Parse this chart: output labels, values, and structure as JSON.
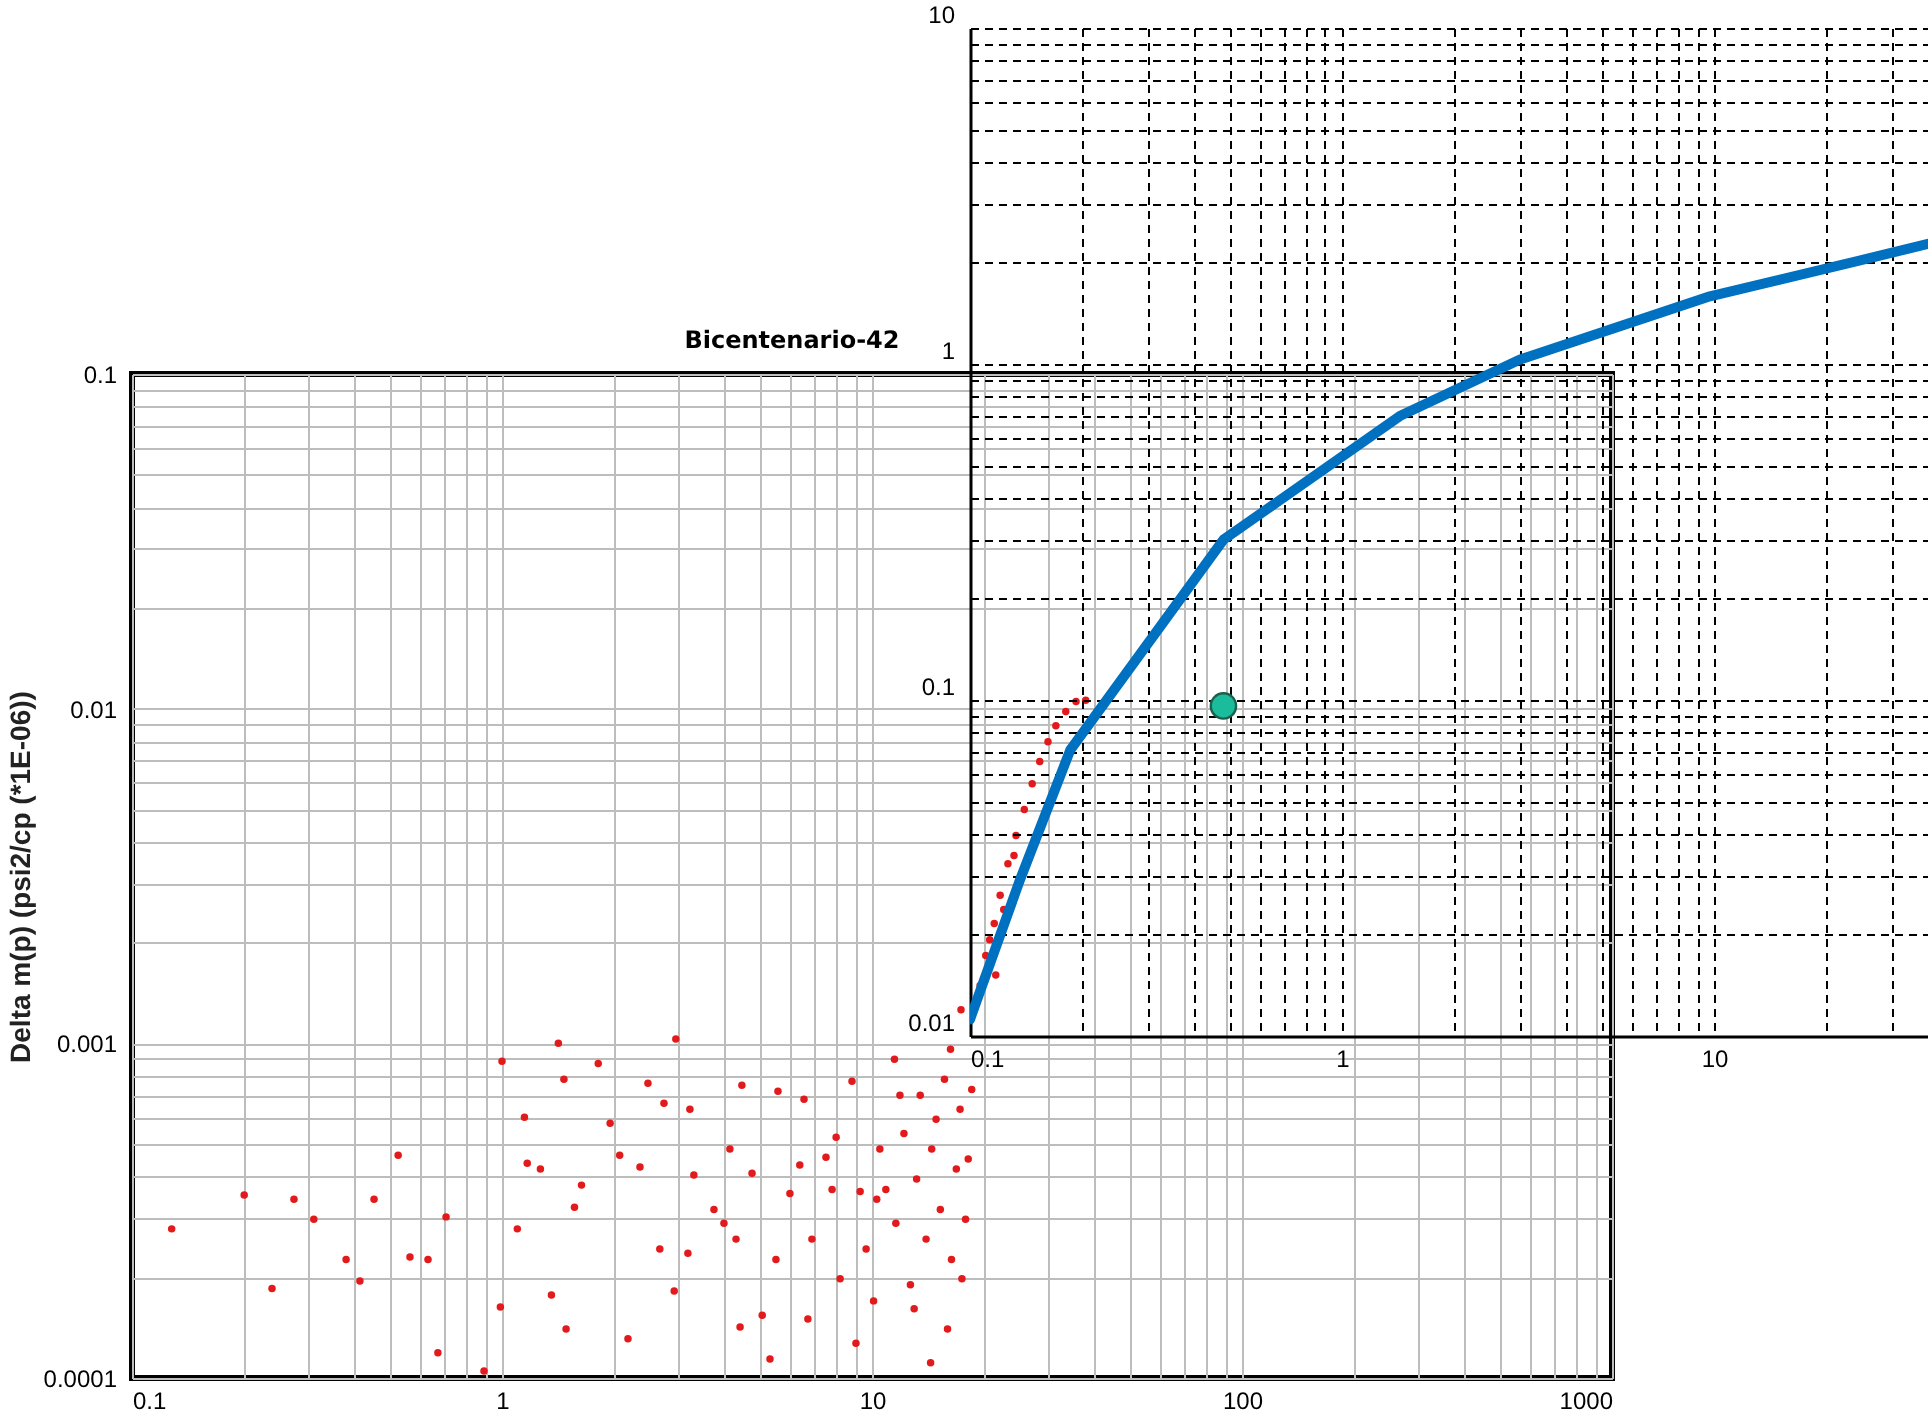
{
  "chart_data": [
    {
      "type": "scatter",
      "title": "Bicentenario-42",
      "ylabel": "Delta m(p) (psi2/cp (*1E-06))",
      "log": "xy",
      "xlim": [
        0.1,
        1000
      ],
      "ylim": [
        0.0001,
        0.1
      ],
      "xticks": [
        0.1,
        {
          "value": 0.2,
          "label": null
        },
        {
          "value": 0.3,
          "label": null
        },
        {
          "value": 0.4,
          "label": null
        },
        {
          "value": 0.5,
          "label": null
        },
        {
          "value": 0.6,
          "label": null
        },
        {
          "value": 0.7,
          "label": null
        },
        {
          "value": 0.8,
          "label": null
        },
        {
          "value": 0.9,
          "label": null
        },
        1,
        {
          "value": 2,
          "label": null
        },
        {
          "value": 3,
          "label": null
        },
        {
          "value": 4,
          "label": null
        },
        {
          "value": 5,
          "label": null
        },
        {
          "value": 6,
          "label": null
        },
        {
          "value": 7,
          "label": null
        },
        {
          "value": 8,
          "label": null
        },
        {
          "value": 9,
          "label": null
        },
        10,
        {
          "value": 20,
          "label": null
        },
        {
          "value": 30,
          "label": null
        },
        {
          "value": 40,
          "label": null
        },
        {
          "value": 50,
          "label": null
        },
        {
          "value": 60,
          "label": null
        },
        {
          "value": 70,
          "label": null
        },
        {
          "value": 80,
          "label": null
        },
        {
          "value": 90,
          "label": null
        },
        100,
        {
          "value": 200,
          "label": null
        },
        {
          "value": 300,
          "label": null
        },
        {
          "value": 400,
          "label": null
        },
        {
          "value": 500,
          "label": null
        },
        {
          "value": 600,
          "label": null
        },
        {
          "value": 700,
          "label": null
        },
        {
          "value": 800,
          "label": null
        },
        {
          "value": 900,
          "label": null
        },
        1000
      ],
      "yticks": [
        0.0001,
        {
          "value": 0.0002,
          "label": null
        },
        {
          "value": 0.0003,
          "label": null
        },
        {
          "value": 0.0004,
          "label": null
        },
        {
          "value": 0.0005,
          "label": null
        },
        {
          "value": 0.0006,
          "label": null
        },
        {
          "value": 0.0007,
          "label": null
        },
        {
          "value": 0.0008,
          "label": null
        },
        {
          "value": 0.0009,
          "label": null
        },
        0.001,
        {
          "value": 0.002,
          "label": null
        },
        {
          "value": 0.003,
          "label": null
        },
        {
          "value": 0.004,
          "label": null
        },
        {
          "value": 0.005,
          "label": null
        },
        {
          "value": 0.006,
          "label": null
        },
        {
          "value": 0.007,
          "label": null
        },
        {
          "value": 0.008,
          "label": null
        },
        {
          "value": 0.009,
          "label": null
        },
        0.01,
        {
          "value": 0.02,
          "label": null
        },
        {
          "value": 0.03,
          "label": null
        },
        {
          "value": 0.04,
          "label": null
        },
        {
          "value": 0.05,
          "label": null
        },
        {
          "value": 0.06,
          "label": null
        },
        {
          "value": 0.07,
          "label": null
        },
        {
          "value": 0.08,
          "label": null
        },
        {
          "value": 0.09,
          "label": null
        },
        0.1
      ],
      "grid": true,
      "marker": "circle",
      "series": [
        {
          "color": "#e31a1c",
          "x": [
            0.128,
            0.201,
            0.239,
            0.274,
            0.31,
            0.379,
            0.413,
            0.451,
            0.524,
            0.564,
            0.631,
            0.706,
            0.671,
            0.894,
            0.99,
            1.0,
            1.1,
            1.15,
            1.17,
            1.36,
            1.42,
            1.47,
            1.49,
            1.57,
            1.64,
            1.82,
            1.96,
            2.08,
            2.36,
            2.48,
            2.67,
            2.74,
            2.92,
            2.95,
            3.18,
            3.3,
            3.74,
            4.13,
            4.29,
            4.4,
            4.45,
            4.74,
            5.05,
            5.3,
            5.57,
            6.0,
            6.38,
            6.71,
            6.88,
            7.51,
            8.0,
            8.2,
            8.83,
            9.29,
            9.64,
            10.1,
            10.5,
            10.9,
            11.5,
            11.6,
            12.2,
            12.7,
            13.2,
            13.5,
            14.0,
            14.4,
            14.9,
            15.3,
            15.7,
            16.0,
            16.4,
            16.9,
            17.3,
            17.5,
            16.3,
            14.5,
            13.0,
            11.9,
            10.3,
            9.05,
            7.8,
            6.55,
            5.5,
            3.98,
            3.22,
            2.19,
            1.27,
            17.4,
            19.6,
            20.3,
            21.4,
            22.2,
            21.6,
            23.3,
            24.5,
            25.8,
            27.1,
            28.4,
            29.9,
            31.4,
            33.4,
            35.6,
            37.8,
            18.6,
            18.2,
            17.9,
            24.2,
            22.7,
            20.8
          ],
          "values": [
            0.000279,
            0.000352,
            0.000185,
            0.000342,
            0.000298,
            0.000226,
            0.000195,
            0.000342,
            0.000463,
            0.00023,
            0.000226,
            0.000303,
            0.000119,
            0.000105,
            0.000163,
            0.000884,
            0.000279,
            0.000601,
            0.000438,
            0.000177,
            0.001,
            0.000781,
            0.00014,
            0.000324,
            0.000377,
            0.000871,
            0.000577,
            0.000463,
            0.000427,
            0.00076,
            0.000243,
            0.000662,
            0.000182,
            0.00103,
            0.000236,
            0.000404,
            0.000319,
            0.000483,
            0.00026,
            0.000142,
            0.00075,
            0.000409,
            0.000154,
            0.000114,
            0.000719,
            0.000356,
            0.000433,
            0.00015,
            0.00026,
            0.000457,
            0.000524,
            0.000198,
            0.00077,
            0.000361,
            0.000243,
            0.00017,
            0.000483,
            0.000366,
            0.000896,
            0.00029,
            0.000538,
            0.00019,
            0.000393,
            0.0007,
            0.00026,
            0.000111,
            0.000593,
            0.000319,
            0.000781,
            0.00014,
            0.000226,
            0.000421,
            0.000635,
            0.000198,
            0.00096,
            0.000483,
            0.000161,
            0.0007,
            0.000342,
            0.000127,
            0.000366,
            0.000681,
            0.000226,
            0.00029,
            0.000635,
            0.000131,
            0.000421,
            0.00126,
            0.00149,
            0.00183,
            0.00228,
            0.00277,
            0.0016,
            0.00344,
            0.00418,
            0.005,
            0.00597,
            0.00695,
            0.00796,
            0.00889,
            0.0098,
            0.0105,
            0.0106,
            0.000728,
            0.000451,
            0.000298,
            0.00364,
            0.00251,
            0.00204
          ]
        }
      ]
    },
    {
      "type": "line",
      "log": "xy",
      "xlim": [
        0.1,
        37.6
      ],
      "ylim": [
        0.01,
        10
      ],
      "xticks": [
        0.1,
        {
          "value": 0.2,
          "label": null
        },
        {
          "value": 0.3,
          "label": null
        },
        {
          "value": 0.4,
          "label": null
        },
        {
          "value": 0.5,
          "label": null
        },
        {
          "value": 0.6,
          "label": null
        },
        {
          "value": 0.7,
          "label": null
        },
        {
          "value": 0.8,
          "label": null
        },
        {
          "value": 0.9,
          "label": null
        },
        1,
        {
          "value": 2,
          "label": null
        },
        {
          "value": 3,
          "label": null
        },
        {
          "value": 4,
          "label": null
        },
        {
          "value": 5,
          "label": null
        },
        {
          "value": 6,
          "label": null
        },
        {
          "value": 7,
          "label": null
        },
        {
          "value": 8,
          "label": null
        },
        {
          "value": 9,
          "label": null
        },
        10,
        {
          "value": 20,
          "label": null
        },
        {
          "value": 30,
          "label": null
        }
      ],
      "yticks": [
        0.01,
        {
          "value": 0.02,
          "label": null
        },
        {
          "value": 0.03,
          "label": null
        },
        {
          "value": 0.04,
          "label": null
        },
        {
          "value": 0.05,
          "label": null
        },
        {
          "value": 0.06,
          "label": null
        },
        {
          "value": 0.07,
          "label": null
        },
        {
          "value": 0.08,
          "label": null
        },
        {
          "value": 0.09,
          "label": null
        },
        0.1,
        {
          "value": 0.2,
          "label": null
        },
        {
          "value": 0.3,
          "label": null
        },
        {
          "value": 0.4,
          "label": null
        },
        {
          "value": 0.5,
          "label": null
        },
        {
          "value": 0.6,
          "label": null
        },
        {
          "value": 0.7,
          "label": null
        },
        {
          "value": 0.8,
          "label": null
        },
        {
          "value": 0.9,
          "label": null
        },
        1,
        {
          "value": 2,
          "label": null
        },
        {
          "value": 3,
          "label": null
        },
        {
          "value": 4,
          "label": null
        },
        {
          "value": 5,
          "label": null
        },
        {
          "value": 6,
          "label": null
        },
        {
          "value": 7,
          "label": null
        },
        {
          "value": 8,
          "label": null
        },
        {
          "value": 9,
          "label": null
        },
        10
      ],
      "grid": true,
      "series": [
        {
          "color": "#0070c0",
          "marker": "none",
          "x": [
            0.1,
            0.136,
            0.186,
            0.48,
            1.43,
            3.0,
            9.75,
            27.9,
            37.6
          ],
          "values": [
            0.0112,
            0.029,
            0.071,
            0.3,
            0.7,
            1.03,
            1.59,
            2.1,
            2.28
          ]
        },
        {
          "type": "scatter",
          "color": "#1abc9c",
          "marker": "circle",
          "x": [
            0.48
          ],
          "values": [
            0.096
          ]
        }
      ]
    }
  ]
}
